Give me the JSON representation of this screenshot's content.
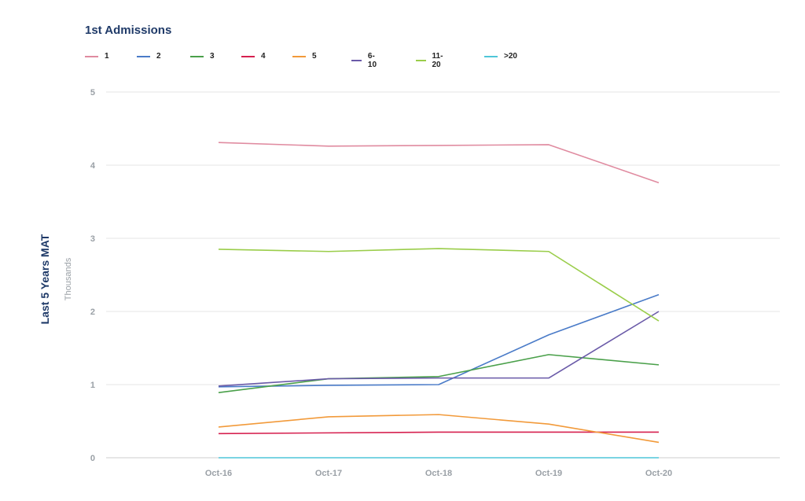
{
  "chart_data": {
    "type": "line",
    "title": "1st Admissions",
    "ylabel": "Last 5 Years MAT",
    "yunit": "Thousands",
    "xlabel": "",
    "categories": [
      "Oct-16",
      "Oct-17",
      "Oct-18",
      "Oct-19",
      "Oct-20"
    ],
    "ylim": [
      0,
      5
    ],
    "yticks": [
      "0",
      "1",
      "2",
      "3",
      "4",
      "5"
    ],
    "grid": true,
    "legend_position": "top-left",
    "series": [
      {
        "name": "1",
        "color": "#e08ba0",
        "values": [
          4.31,
          4.26,
          4.27,
          4.28,
          3.76
        ]
      },
      {
        "name": "2",
        "color": "#4a7bc8",
        "values": [
          0.97,
          0.99,
          1.0,
          1.68,
          2.23
        ]
      },
      {
        "name": "3",
        "color": "#4aa04a",
        "values": [
          0.89,
          1.08,
          1.11,
          1.41,
          1.27
        ]
      },
      {
        "name": "4",
        "color": "#d6204f",
        "values": [
          0.33,
          0.34,
          0.35,
          0.35,
          0.35
        ]
      },
      {
        "name": "5",
        "color": "#f29a3a",
        "values": [
          0.42,
          0.56,
          0.59,
          0.46,
          0.21
        ]
      },
      {
        "name": "6-10",
        "color": "#6a5aa8",
        "values": [
          0.98,
          1.08,
          1.09,
          1.09,
          2.0
        ]
      },
      {
        "name": "11-20",
        "color": "#9acd4a",
        "values": [
          2.85,
          2.82,
          2.86,
          2.82,
          1.87
        ]
      },
      {
        "name": ">20",
        "color": "#4fc6d8",
        "values": [
          0.0,
          0.0,
          0.0,
          0.0,
          0.0
        ]
      }
    ]
  }
}
